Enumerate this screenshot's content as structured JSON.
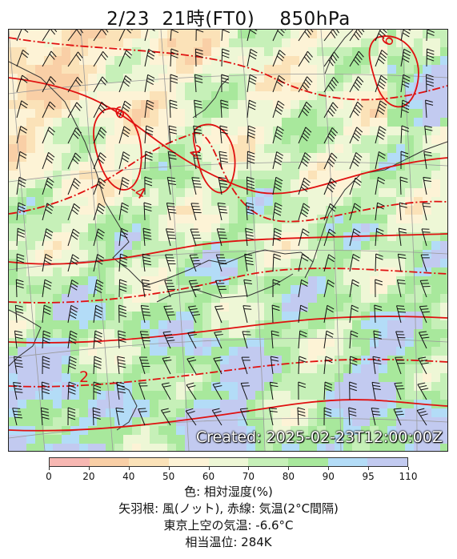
{
  "title": "2/23  21時(FT0)    850hPa",
  "map": {
    "created_label": "Created: 2025-02-23T12:00:00Z",
    "isotherm_labels": [
      "6",
      "2",
      "-4",
      "2",
      "6"
    ],
    "colors": {
      "isotherm": "#e01010",
      "coast": "#333333",
      "wind": "#111111",
      "grid": "#999999"
    }
  },
  "colorbar": {
    "ticks": [
      "0",
      "20",
      "40",
      "50",
      "60",
      "70",
      "80",
      "90",
      "95",
      "110"
    ],
    "colors": [
      "#f7b7b2",
      "#f9cfa6",
      "#fbe2b8",
      "#fdf3d6",
      "#eef7d6",
      "#c6f0b8",
      "#a8e89c",
      "#b3dcf7",
      "#c2caf0"
    ]
  },
  "legend": {
    "line1": "色: 相対湿度(%)",
    "line2": "矢羽根: 風(ノット), 赤線: 気温(2°C間隔)",
    "line3": "東京上空の気温: -6.6°C",
    "line4": "相当温位: 284K"
  }
}
